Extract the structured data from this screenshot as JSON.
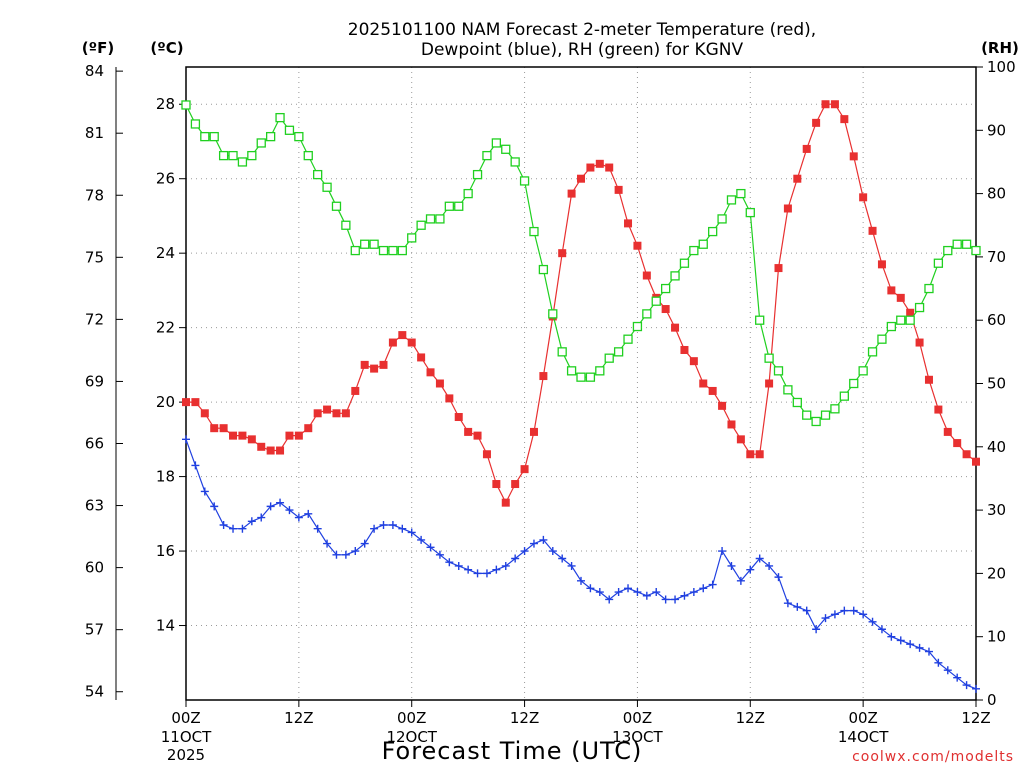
{
  "chart_data": {
    "type": "line",
    "title_line1": "2025101100 NAM Forecast 2-meter Temperature (red),",
    "title_line2": "Dewpoint (blue), RH (green) for KGNV",
    "xlabel": "Forecast Time (UTC)",
    "credit": "coolwx.com/modelts",
    "grid": true,
    "forecast_hours": [
      0,
      84
    ],
    "x_ticks": [
      {
        "hour": 0,
        "label": "00Z",
        "date": "11OCT",
        "year": "2025"
      },
      {
        "hour": 12,
        "label": "12Z",
        "date": "",
        "year": ""
      },
      {
        "hour": 24,
        "label": "00Z",
        "date": "12OCT",
        "year": ""
      },
      {
        "hour": 36,
        "label": "12Z",
        "date": "",
        "year": ""
      },
      {
        "hour": 48,
        "label": "00Z",
        "date": "13OCT",
        "year": ""
      },
      {
        "hour": 60,
        "label": "12Z",
        "date": "",
        "year": ""
      },
      {
        "hour": 72,
        "label": "00Z",
        "date": "14OCT",
        "year": ""
      },
      {
        "hour": 84,
        "label": "12Z",
        "date": "",
        "year": ""
      }
    ],
    "axes": {
      "fahrenheit": {
        "unit_label": "(ºF)",
        "ticks": [
          54,
          57,
          60,
          63,
          66,
          69,
          72,
          75,
          78,
          81,
          84
        ]
      },
      "celsius": {
        "unit_label": "(ºC)",
        "ylim": [
          12,
          29
        ],
        "ticks": [
          14,
          16,
          18,
          20,
          22,
          24,
          26,
          28
        ]
      },
      "rh": {
        "unit_label": "(RH)",
        "ylim": [
          0,
          100
        ],
        "ticks": [
          0,
          10,
          20,
          30,
          40,
          50,
          60,
          70,
          80,
          90,
          100
        ]
      }
    },
    "series": [
      {
        "name": "2-meter Temperature",
        "units": "C",
        "axis": "celsius",
        "color": "#e83030",
        "marker": "filled-square",
        "start_hour": 0,
        "step_hours": 1,
        "values": [
          20.0,
          20.0,
          19.7,
          19.3,
          19.3,
          19.1,
          19.1,
          19.0,
          18.8,
          18.7,
          18.7,
          19.1,
          19.1,
          19.3,
          19.7,
          19.8,
          19.7,
          19.7,
          20.3,
          21.0,
          20.9,
          21.0,
          21.6,
          21.8,
          21.6,
          21.2,
          20.8,
          20.5,
          20.1,
          19.6,
          19.2,
          19.1,
          18.6,
          17.8,
          17.3,
          17.8,
          18.2,
          19.2,
          20.7,
          22.3,
          24.0,
          25.6,
          26.0,
          26.3,
          26.4,
          26.3,
          25.7,
          24.8,
          24.2,
          23.4,
          22.8,
          22.5,
          22.0,
          21.4,
          21.1,
          20.5,
          20.3,
          19.9,
          19.4,
          19.0,
          18.6,
          18.6,
          20.5,
          23.6,
          25.2,
          26.0,
          26.8,
          27.5,
          28.0,
          28.0,
          27.6,
          26.6,
          25.5,
          24.6,
          23.7,
          23.0,
          22.8,
          22.4,
          21.6,
          20.6,
          19.8,
          19.2,
          18.9,
          18.6,
          18.4
        ]
      },
      {
        "name": "Dewpoint",
        "units": "C",
        "axis": "celsius",
        "color": "#2040e0",
        "marker": "plus",
        "start_hour": 0,
        "step_hours": 1,
        "values": [
          19.0,
          18.3,
          17.6,
          17.2,
          16.7,
          16.6,
          16.6,
          16.8,
          16.9,
          17.2,
          17.3,
          17.1,
          16.9,
          17.0,
          16.6,
          16.2,
          15.9,
          15.9,
          16.0,
          16.2,
          16.6,
          16.7,
          16.7,
          16.6,
          16.5,
          16.3,
          16.1,
          15.9,
          15.7,
          15.6,
          15.5,
          15.4,
          15.4,
          15.5,
          15.6,
          15.8,
          16.0,
          16.2,
          16.3,
          16.0,
          15.8,
          15.6,
          15.2,
          15.0,
          14.9,
          14.7,
          14.9,
          15.0,
          14.9,
          14.8,
          14.9,
          14.7,
          14.7,
          14.8,
          14.9,
          15.0,
          15.1,
          16.0,
          15.6,
          15.2,
          15.5,
          15.8,
          15.6,
          15.3,
          14.6,
          14.5,
          14.4,
          13.9,
          14.2,
          14.3,
          14.4,
          14.4,
          14.3,
          14.1,
          13.9,
          13.7,
          13.6,
          13.5,
          13.4,
          13.3,
          13.0,
          12.8,
          12.6,
          12.4,
          12.3
        ]
      },
      {
        "name": "RH",
        "units": "%",
        "axis": "rh",
        "color": "#20d020",
        "marker": "open-square",
        "start_hour": 0,
        "step_hours": 1,
        "values": [
          94,
          91,
          89,
          89,
          86,
          86,
          85,
          86,
          88,
          89,
          92,
          90,
          89,
          86,
          83,
          81,
          78,
          75,
          71,
          72,
          72,
          71,
          71,
          71,
          73,
          75,
          76,
          76,
          78,
          78,
          80,
          83,
          86,
          88,
          87,
          85,
          82,
          74,
          68,
          61,
          55,
          52,
          51,
          51,
          52,
          54,
          55,
          57,
          59,
          61,
          63,
          65,
          67,
          69,
          71,
          72,
          74,
          76,
          79,
          80,
          77,
          60,
          54,
          52,
          49,
          47,
          45,
          44,
          45,
          46,
          48,
          50,
          52,
          55,
          57,
          59,
          60,
          60,
          62,
          65,
          69,
          71,
          72,
          72,
          71
        ]
      }
    ]
  }
}
